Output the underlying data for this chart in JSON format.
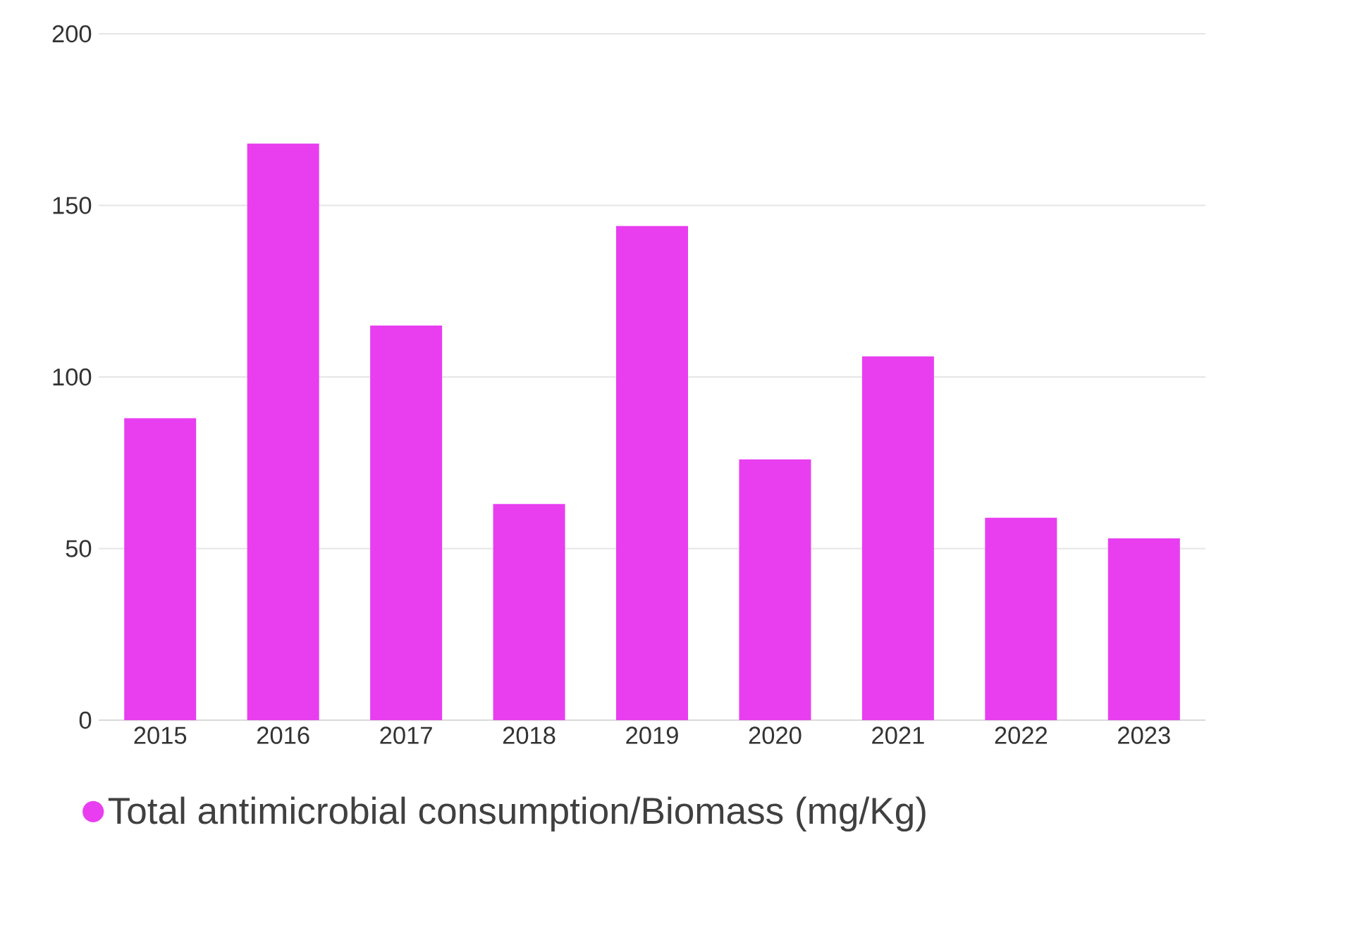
{
  "chart_data": {
    "type": "bar",
    "categories": [
      "2015",
      "2016",
      "2017",
      "2018",
      "2019",
      "2020",
      "2021",
      "2022",
      "2023"
    ],
    "series": [
      {
        "name": "Total antimicrobial consumption/Biomass (mg/Kg)",
        "color": "#e83ef0",
        "values": [
          88,
          168,
          115,
          63,
          144,
          76,
          106,
          59,
          53
        ]
      }
    ],
    "ylim": [
      0,
      200
    ],
    "yticks": [
      0,
      50,
      100,
      150,
      200
    ],
    "grid": "y",
    "legend": "bottom"
  }
}
